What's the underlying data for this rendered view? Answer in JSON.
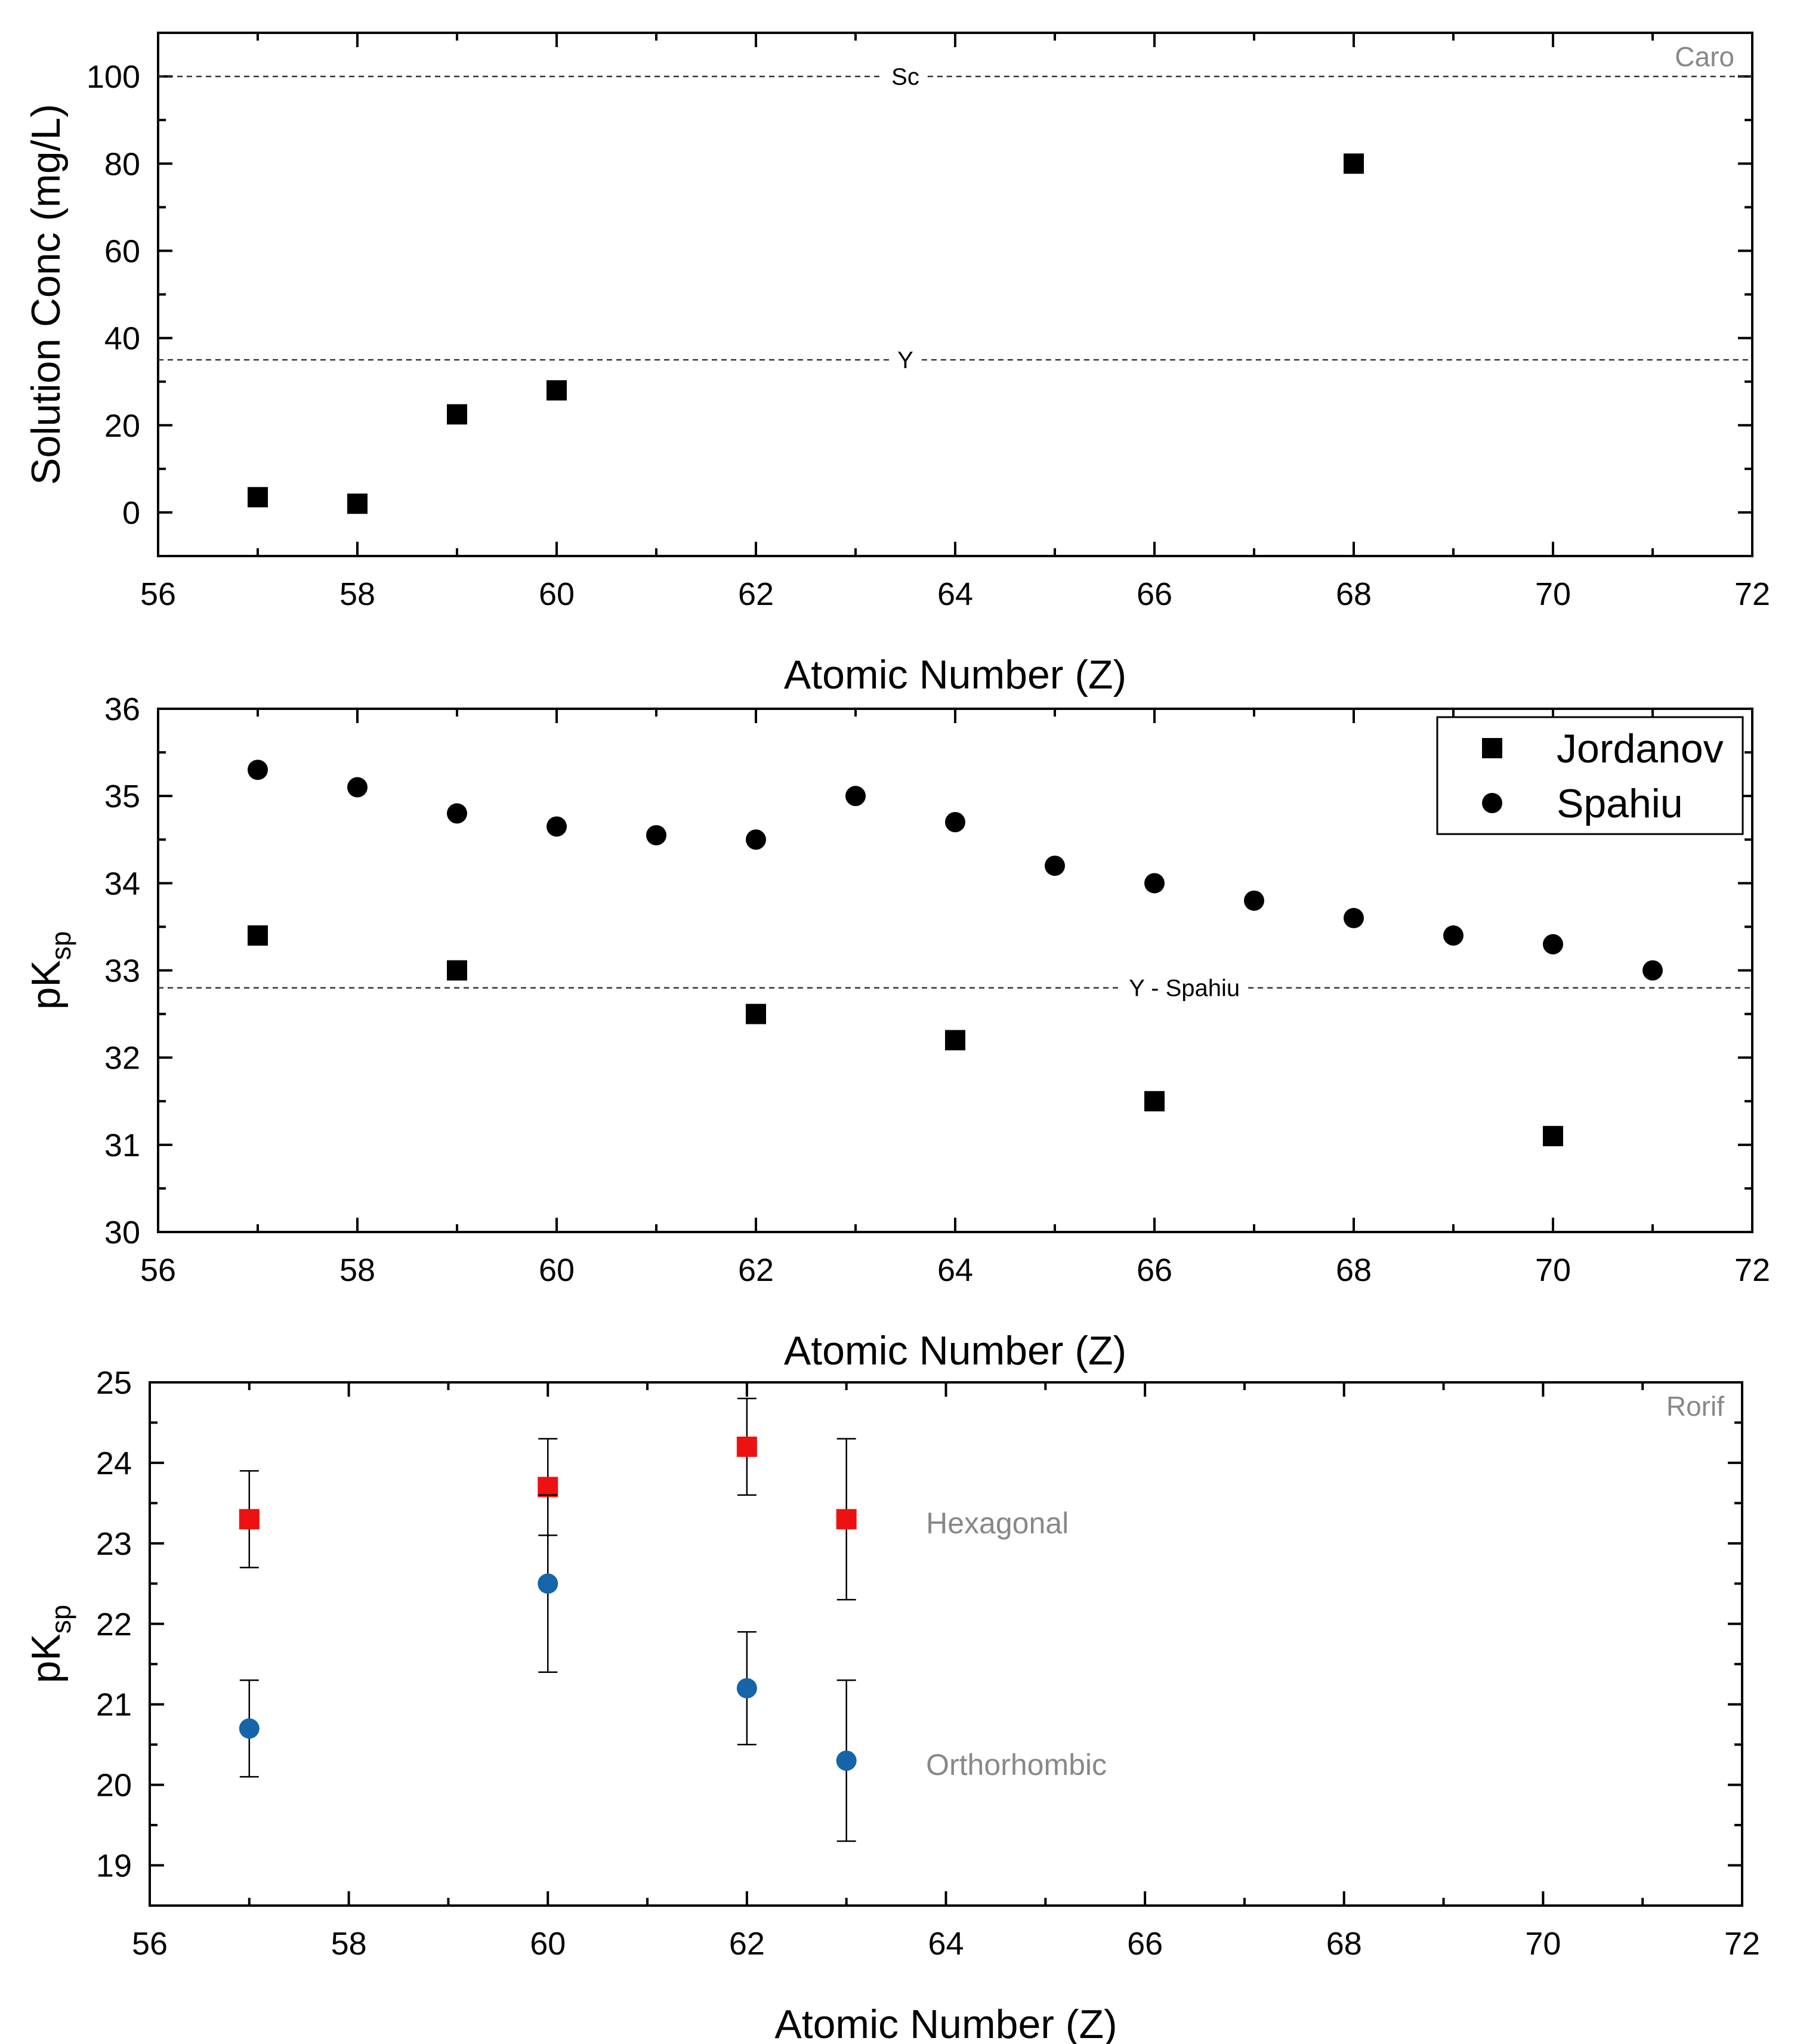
{
  "chart_data": [
    {
      "type": "scatter",
      "xlabel": "Atomic Number (Z)",
      "ylabel": "Solution Conc (mg/L)",
      "xlim": [
        56,
        72
      ],
      "ylim": [
        -10,
        110
      ],
      "xticks": [
        56,
        58,
        60,
        62,
        64,
        66,
        68,
        70,
        72
      ],
      "yticks": [
        0,
        20,
        40,
        60,
        80,
        100
      ],
      "corner_note": "Caro",
      "reference_lines": [
        {
          "label": "Sc",
          "y": 100,
          "label_x": 63.5
        },
        {
          "label": "Y",
          "y": 35,
          "label_x": 63.5
        }
      ],
      "series": [
        {
          "name": "Solution Conc",
          "marker": "square",
          "color": "#000000",
          "points": [
            [
              57,
              3.5
            ],
            [
              58,
              2
            ],
            [
              59,
              22.5
            ],
            [
              60,
              28
            ],
            [
              68,
              80
            ]
          ]
        }
      ]
    },
    {
      "type": "scatter",
      "xlabel": "Atomic Number (Z)",
      "ylabel_main": "pK",
      "ylabel_sub": "sp",
      "xlim": [
        56,
        72
      ],
      "ylim": [
        30,
        36
      ],
      "xticks": [
        56,
        58,
        60,
        62,
        64,
        66,
        68,
        70,
        72
      ],
      "yticks": [
        30,
        31,
        32,
        33,
        34,
        35,
        36
      ],
      "legend_position": "top-right",
      "reference_lines": [
        {
          "label": "Y - Spahiu",
          "y": 32.8,
          "label_x": 66.3
        }
      ],
      "series": [
        {
          "name": "Jordanov",
          "marker": "square",
          "color": "#000000",
          "points": [
            [
              57,
              33.4
            ],
            [
              59,
              33.0
            ],
            [
              62,
              32.5
            ],
            [
              64,
              32.2
            ],
            [
              66,
              31.5
            ],
            [
              70,
              31.1
            ]
          ]
        },
        {
          "name": "Spahiu",
          "marker": "circle",
          "color": "#000000",
          "points": [
            [
              57,
              35.3
            ],
            [
              58,
              35.1
            ],
            [
              59,
              34.8
            ],
            [
              60,
              34.65
            ],
            [
              61,
              34.55
            ],
            [
              62,
              34.5
            ],
            [
              63,
              35.0
            ],
            [
              64,
              34.7
            ],
            [
              65,
              34.2
            ],
            [
              66,
              34.0
            ],
            [
              67,
              33.8
            ],
            [
              68,
              33.6
            ],
            [
              69,
              33.4
            ],
            [
              70,
              33.3
            ],
            [
              71,
              33.0
            ]
          ]
        }
      ]
    },
    {
      "type": "scatter",
      "xlabel": "Atomic Number (Z)",
      "ylabel_main": "pK",
      "ylabel_sub": "sp",
      "xlim": [
        56,
        72
      ],
      "ylim": [
        18.5,
        25
      ],
      "xticks": [
        56,
        58,
        60,
        62,
        64,
        66,
        68,
        70,
        72
      ],
      "yticks": [
        19,
        20,
        21,
        22,
        23,
        24,
        25
      ],
      "corner_note": "Rorif",
      "annotations": [
        {
          "text": "Hexagonal",
          "x": 63.8,
          "y": 23.25
        },
        {
          "text": "Orthorhombic",
          "x": 63.8,
          "y": 20.25
        }
      ],
      "series": [
        {
          "name": "Hexagonal",
          "marker": "square",
          "color": "#ee1111",
          "points": [
            [
              57,
              23.3,
              0.6
            ],
            [
              60,
              23.7,
              0.6
            ],
            [
              62,
              24.2,
              0.6
            ],
            [
              63,
              23.3,
              1.0
            ]
          ]
        },
        {
          "name": "Orthorhombic",
          "marker": "circle",
          "color": "#1565a8",
          "points": [
            [
              57,
              20.7,
              0.6
            ],
            [
              60,
              22.5,
              1.1
            ],
            [
              62,
              21.2,
              0.7
            ],
            [
              63,
              20.3,
              1.0
            ]
          ]
        }
      ]
    }
  ]
}
